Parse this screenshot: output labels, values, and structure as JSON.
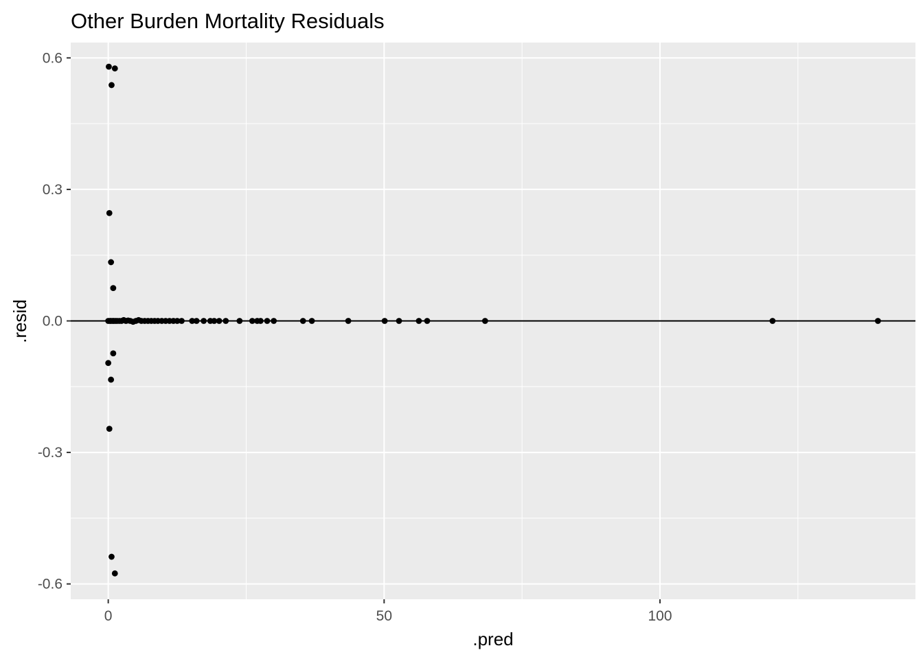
{
  "chart_data": {
    "type": "scatter",
    "title": "Other Burden Mortality Residuals",
    "xlabel": ".pred",
    "ylabel": ".resid",
    "xlim": [
      -6.8,
      146.3
    ],
    "ylim": [
      -0.635,
      0.635
    ],
    "x_ticks": [
      0,
      50,
      100
    ],
    "x_tick_labels": [
      "0",
      "50",
      "100"
    ],
    "x_minor_ticks": [
      25,
      75,
      125
    ],
    "y_ticks": [
      -0.6,
      -0.3,
      0.0,
      0.3,
      0.6
    ],
    "y_tick_labels": [
      "-0.6",
      "-0.3",
      "0.0",
      "0.3",
      "0.6"
    ],
    "y_minor_ticks": [
      -0.45,
      -0.15,
      0.15,
      0.45
    ],
    "hline_y": 0,
    "grid": true,
    "legend": "none",
    "colors": {
      "panel_background": "#ebebeb",
      "grid_line": "#ffffff",
      "point": "#000000",
      "hline": "#000000",
      "tick_label": "#4d4d4d",
      "tick_mark": "#333333"
    },
    "points": [
      {
        "x": 0.1,
        "y": 0.58
      },
      {
        "x": 1.2,
        "y": 0.576
      },
      {
        "x": 0.6,
        "y": 0.538
      },
      {
        "x": 0.2,
        "y": 0.246
      },
      {
        "x": 0.5,
        "y": 0.134
      },
      {
        "x": 0.9,
        "y": 0.075
      },
      {
        "x": 0.9,
        "y": -0.074
      },
      {
        "x": 0.0,
        "y": -0.096
      },
      {
        "x": 0.5,
        "y": -0.134
      },
      {
        "x": 0.2,
        "y": -0.246
      },
      {
        "x": 0.6,
        "y": -0.538
      },
      {
        "x": 1.2,
        "y": -0.576
      },
      {
        "x": 0.0,
        "y": 0.0
      },
      {
        "x": 0.3,
        "y": 0.0
      },
      {
        "x": 0.5,
        "y": 0.0
      },
      {
        "x": 0.8,
        "y": 0.0
      },
      {
        "x": 1.0,
        "y": 0.0
      },
      {
        "x": 1.3,
        "y": 0.0
      },
      {
        "x": 1.6,
        "y": 0.0
      },
      {
        "x": 2.0,
        "y": 0.0
      },
      {
        "x": 2.4,
        "y": 0.0
      },
      {
        "x": 2.8,
        "y": 0.002
      },
      {
        "x": 3.2,
        "y": 0.0
      },
      {
        "x": 3.6,
        "y": 0.001
      },
      {
        "x": 4.0,
        "y": 0.0
      },
      {
        "x": 4.5,
        "y": -0.002
      },
      {
        "x": 5.0,
        "y": 0.0
      },
      {
        "x": 5.5,
        "y": 0.002
      },
      {
        "x": 6.0,
        "y": 0.0
      },
      {
        "x": 6.6,
        "y": 0.0
      },
      {
        "x": 7.2,
        "y": 0.0
      },
      {
        "x": 7.8,
        "y": 0.0
      },
      {
        "x": 8.4,
        "y": 0.0
      },
      {
        "x": 9.0,
        "y": 0.0
      },
      {
        "x": 9.7,
        "y": 0.0
      },
      {
        "x": 10.4,
        "y": 0.0
      },
      {
        "x": 11.1,
        "y": 0.0
      },
      {
        "x": 11.8,
        "y": 0.0
      },
      {
        "x": 12.5,
        "y": 0.0
      },
      {
        "x": 13.3,
        "y": 0.0
      },
      {
        "x": 15.2,
        "y": 0.0
      },
      {
        "x": 16.0,
        "y": 0.0
      },
      {
        "x": 17.3,
        "y": 0.0
      },
      {
        "x": 18.5,
        "y": 0.0
      },
      {
        "x": 19.2,
        "y": 0.0
      },
      {
        "x": 20.1,
        "y": 0.0
      },
      {
        "x": 21.3,
        "y": 0.0
      },
      {
        "x": 23.8,
        "y": 0.0
      },
      {
        "x": 26.1,
        "y": 0.0
      },
      {
        "x": 27.0,
        "y": 0.0
      },
      {
        "x": 27.6,
        "y": 0.0
      },
      {
        "x": 28.8,
        "y": 0.0
      },
      {
        "x": 30.0,
        "y": 0.0
      },
      {
        "x": 35.3,
        "y": 0.0
      },
      {
        "x": 36.9,
        "y": 0.0
      },
      {
        "x": 43.5,
        "y": 0.0
      },
      {
        "x": 50.1,
        "y": 0.0
      },
      {
        "x": 52.7,
        "y": 0.0
      },
      {
        "x": 56.3,
        "y": 0.0
      },
      {
        "x": 57.8,
        "y": 0.0
      },
      {
        "x": 68.3,
        "y": 0.0
      },
      {
        "x": 120.4,
        "y": 0.0
      },
      {
        "x": 139.5,
        "y": 0.0
      }
    ]
  }
}
